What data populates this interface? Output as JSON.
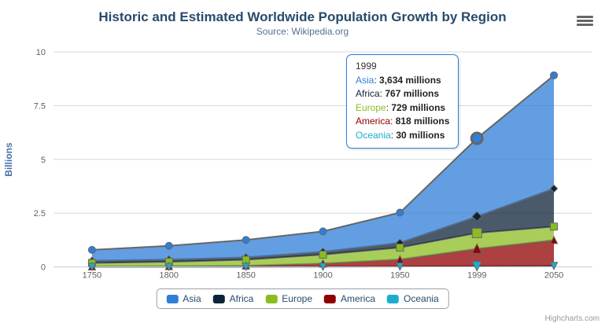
{
  "header": {
    "title": "Historic and Estimated Worldwide Population Growth by Region",
    "subtitle": "Source: Wikipedia.org"
  },
  "icons": {
    "context_menu": "hamburger-menu"
  },
  "chart_data": {
    "type": "area",
    "stacking": "normal",
    "title": "Historic and Estimated Worldwide Population Growth by Region",
    "subtitle": "Source: Wikipedia.org",
    "categories": [
      "1750",
      "1800",
      "1850",
      "1900",
      "1950",
      "1999",
      "2050"
    ],
    "xlabel": "",
    "ylabel": "Billions",
    "ylim": [
      0,
      10
    ],
    "yticks": [
      0,
      2.5,
      5,
      7.5,
      10
    ],
    "values_unit": "millions",
    "grid": true,
    "legend_position": "bottom",
    "hover_index": 5,
    "line_color": "#666666",
    "grid_color": "#d8d8d8",
    "axis_line_color": "#c0d0e0",
    "tick_label_color": "#606060",
    "fill_opacity": 0.75,
    "series": [
      {
        "name": "Asia",
        "color": "#2f7ed8",
        "marker": "circle",
        "values": [
          502,
          635,
          809,
          947,
          1402,
          3634,
          5268
        ]
      },
      {
        "name": "Africa",
        "color": "#0d233a",
        "marker": "diamond",
        "values": [
          106,
          107,
          111,
          133,
          221,
          767,
          1766
        ]
      },
      {
        "name": "Europe",
        "color": "#8bbc21",
        "marker": "square",
        "values": [
          163,
          203,
          276,
          408,
          547,
          729,
          628
        ]
      },
      {
        "name": "America",
        "color": "#910000",
        "marker": "triangle",
        "values": [
          18,
          31,
          54,
          156,
          339,
          818,
          1201
        ]
      },
      {
        "name": "Oceania",
        "color": "#1aadce",
        "marker": "triangle-down",
        "values": [
          2,
          2,
          2,
          6,
          13,
          30,
          46
        ]
      }
    ]
  },
  "tooltip": {
    "header": "1999",
    "rows": [
      {
        "name": "Asia",
        "color": "#2f7ed8",
        "value": "3,634 millions"
      },
      {
        "name": "Africa",
        "color": "#0d233a",
        "value": "767 millions"
      },
      {
        "name": "Europe",
        "color": "#8bbc21",
        "value": "729 millions"
      },
      {
        "name": "America",
        "color": "#910000",
        "value": "818 millions"
      },
      {
        "name": "Oceania",
        "color": "#1aadce",
        "value": "30 millions"
      }
    ]
  },
  "legend": {
    "items": [
      {
        "label": "Asia",
        "color": "#2f7ed8"
      },
      {
        "label": "Africa",
        "color": "#0d233a"
      },
      {
        "label": "Europe",
        "color": "#8bbc21"
      },
      {
        "label": "America",
        "color": "#910000"
      },
      {
        "label": "Oceania",
        "color": "#1aadce"
      }
    ]
  },
  "credits": {
    "label": "Highcharts.com"
  }
}
